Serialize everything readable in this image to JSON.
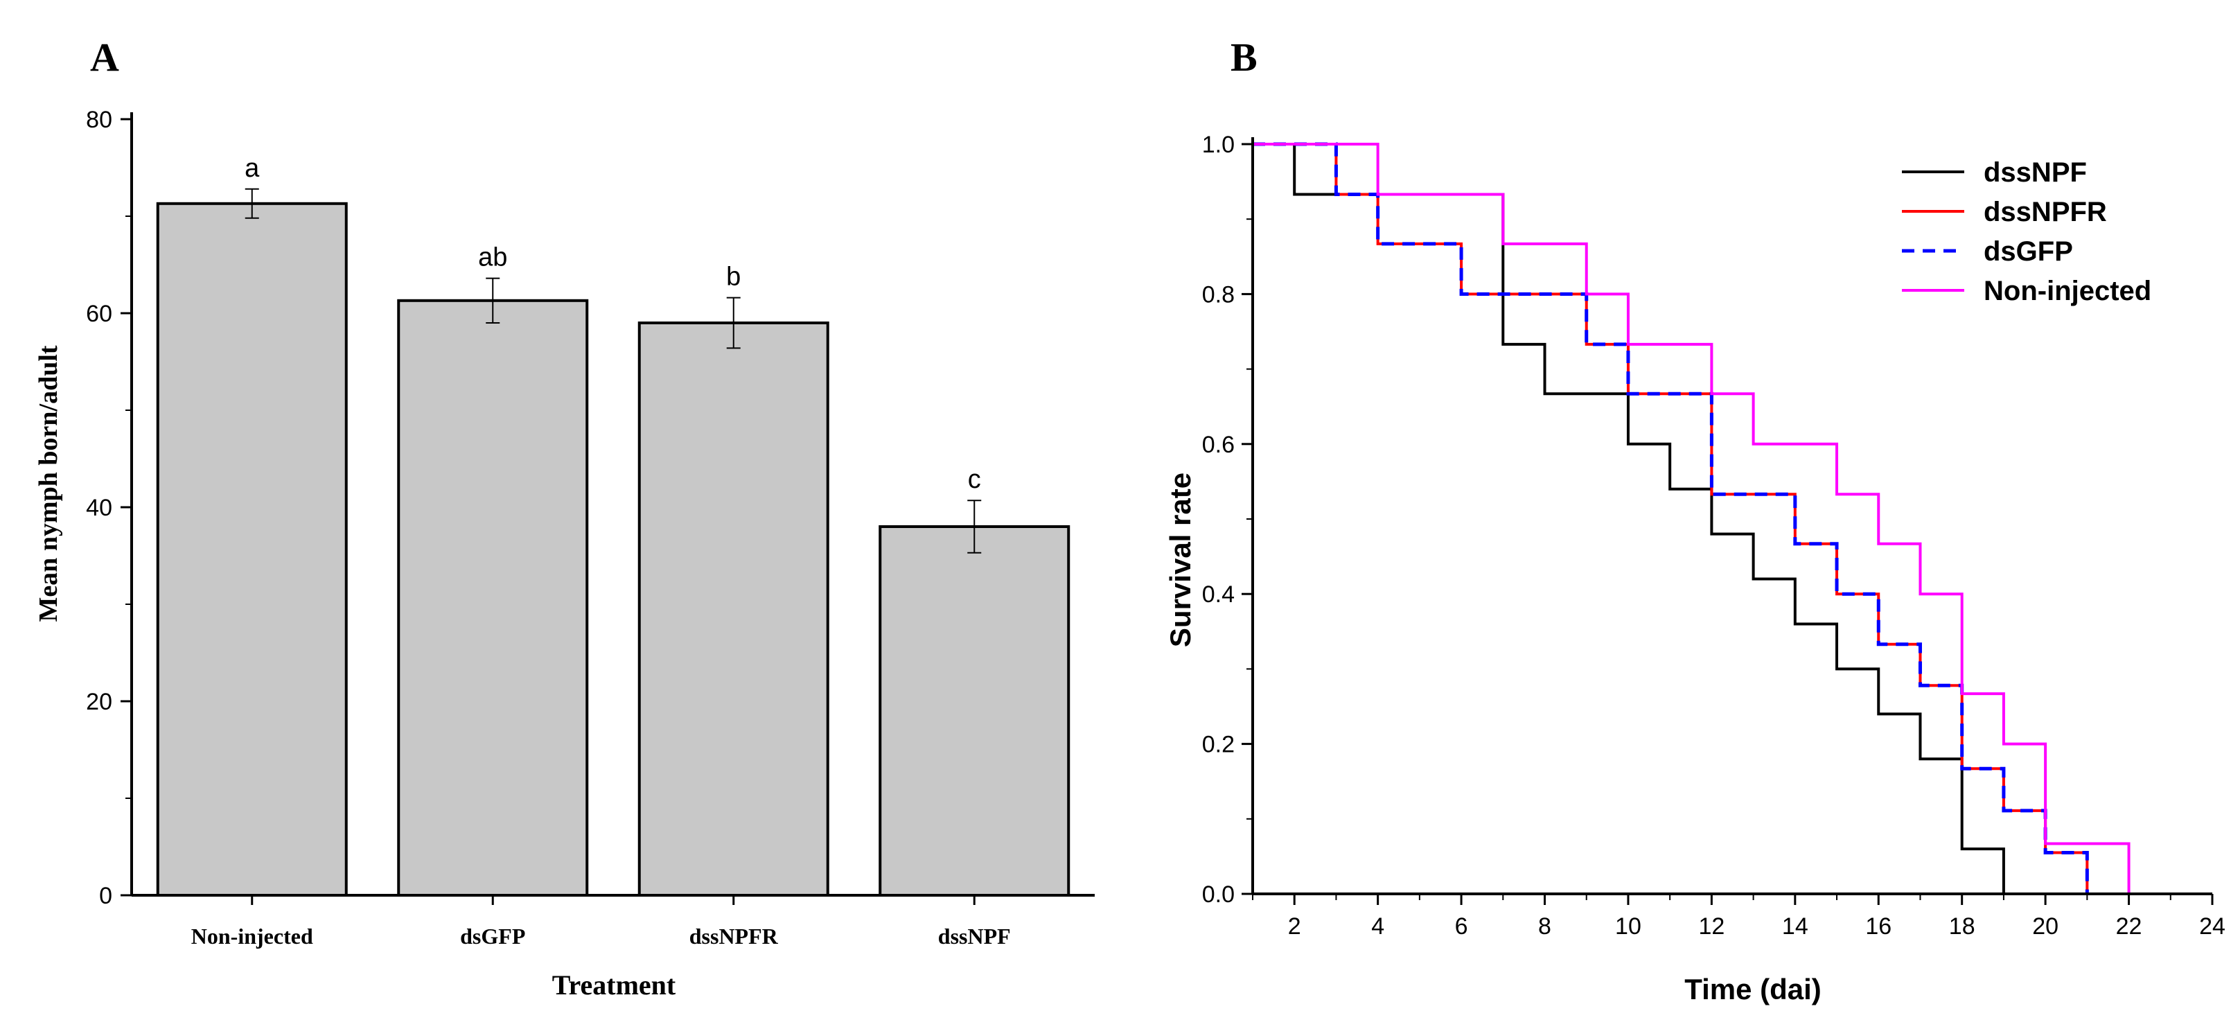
{
  "chart_data": [
    {
      "panel_label": "A",
      "type": "bar",
      "categories": [
        "Non-injected",
        "dsGFP",
        "dssNPFR",
        "dssNPF"
      ],
      "values": [
        71.3,
        61.3,
        59.0,
        38.0
      ],
      "errors": [
        1.5,
        2.3,
        2.6,
        2.7
      ],
      "significance_letters": [
        "a",
        "ab",
        "b",
        "c"
      ],
      "xlabel": "Treatment",
      "ylabel": "Mean nymph born/adult",
      "ylim": [
        0,
        80
      ],
      "yticks": [
        "0",
        "20",
        "40",
        "60",
        "80"
      ],
      "bar_color": "#c8c8c8"
    },
    {
      "panel_label": "B",
      "type": "line",
      "step": true,
      "xlabel": "Time (dai)",
      "ylabel": "Survival rate",
      "xlim": [
        1,
        24
      ],
      "ylim": [
        0,
        1
      ],
      "xticks": [
        "2",
        "4",
        "6",
        "8",
        "10",
        "12",
        "14",
        "16",
        "18",
        "20",
        "22",
        "24"
      ],
      "yticks": [
        "0.0",
        "0.2",
        "0.4",
        "0.6",
        "0.8",
        "1.0"
      ],
      "legend_position": "top-right",
      "series": [
        {
          "name": "dssNPF",
          "color": "#000000",
          "dash": "",
          "x": [
            1,
            2,
            7,
            8,
            10,
            11,
            12,
            13,
            14,
            15,
            16,
            17,
            18,
            19
          ],
          "y": [
            1.0,
            0.933,
            0.733,
            0.667,
            0.6,
            0.54,
            0.48,
            0.42,
            0.36,
            0.3,
            0.24,
            0.18,
            0.06,
            0.0
          ]
        },
        {
          "name": "dssNPFR",
          "color": "#ff0000",
          "dash": "",
          "x": [
            1,
            3,
            4,
            6,
            9,
            10,
            12,
            14,
            15,
            16,
            17,
            18,
            19,
            20,
            21
          ],
          "y": [
            1.0,
            0.933,
            0.867,
            0.8,
            0.733,
            0.667,
            0.533,
            0.467,
            0.4,
            0.333,
            0.278,
            0.167,
            0.111,
            0.055,
            0.0
          ]
        },
        {
          "name": "dsGFP",
          "color": "#0000ff",
          "dash": "18,12",
          "x": [
            1,
            3,
            4,
            6,
            9,
            10,
            12,
            14,
            15,
            16,
            17,
            18,
            19,
            20,
            21
          ],
          "y": [
            1.0,
            0.933,
            0.867,
            0.8,
            0.733,
            0.667,
            0.533,
            0.467,
            0.4,
            0.333,
            0.278,
            0.167,
            0.111,
            0.055,
            0.0
          ]
        },
        {
          "name": "Non-injected",
          "color": "#ff00ff",
          "dash": "",
          "x": [
            1,
            4,
            7,
            9,
            10,
            12,
            13,
            15,
            16,
            17,
            18,
            19,
            20,
            22
          ],
          "y": [
            1.0,
            0.933,
            0.867,
            0.8,
            0.733,
            0.667,
            0.6,
            0.533,
            0.467,
            0.4,
            0.267,
            0.2,
            0.067,
            0.0
          ]
        }
      ]
    }
  ]
}
